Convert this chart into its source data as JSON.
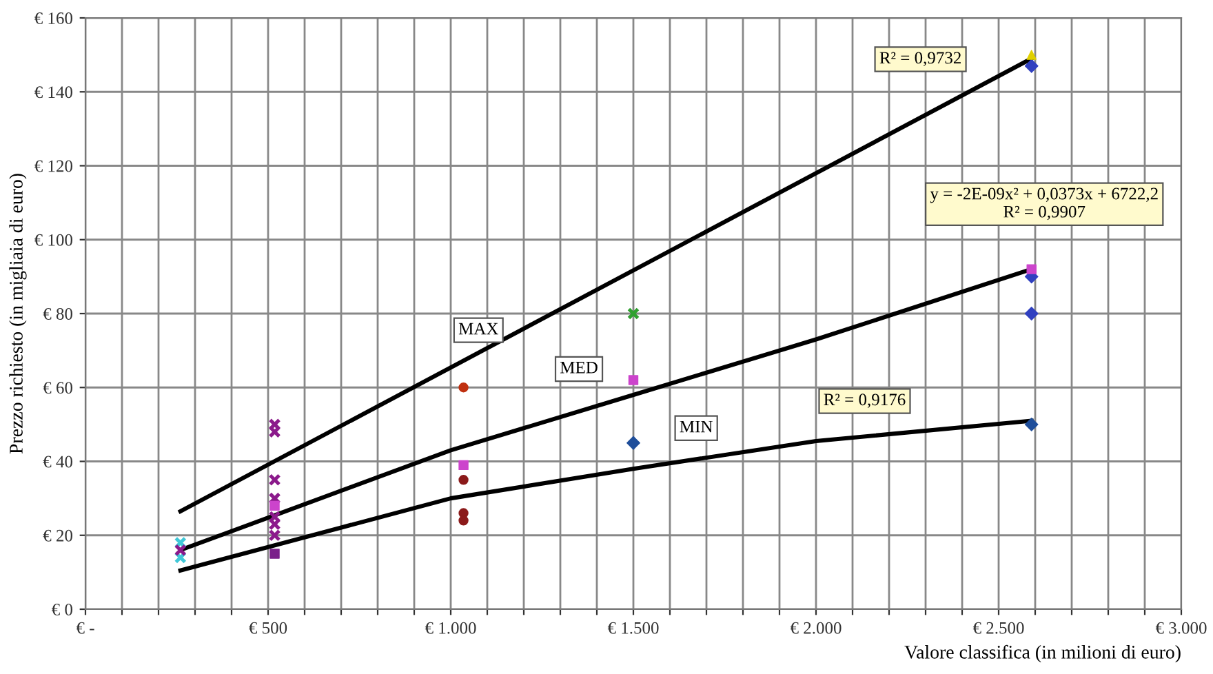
{
  "chart_data": {
    "type": "scatter",
    "xlabel": "Valore classifica (in milioni di euro)",
    "ylabel": "Prezzo richiesto (in migliaia di euro)",
    "xlim": [
      0,
      3000
    ],
    "ylim": [
      0,
      160
    ],
    "xticks": [
      {
        "value": 0,
        "label": "€ -"
      },
      {
        "value": 100,
        "label": null
      },
      {
        "value": 200,
        "label": null
      },
      {
        "value": 300,
        "label": null
      },
      {
        "value": 400,
        "label": null
      },
      {
        "value": 500,
        "label": "€ 500"
      },
      {
        "value": 600,
        "label": null
      },
      {
        "value": 700,
        "label": null
      },
      {
        "value": 800,
        "label": null
      },
      {
        "value": 900,
        "label": null
      },
      {
        "value": 1000,
        "label": "€ 1.000"
      },
      {
        "value": 1100,
        "label": null
      },
      {
        "value": 1200,
        "label": null
      },
      {
        "value": 1300,
        "label": null
      },
      {
        "value": 1400,
        "label": null
      },
      {
        "value": 1500,
        "label": "€ 1.500"
      },
      {
        "value": 1600,
        "label": null
      },
      {
        "value": 1700,
        "label": null
      },
      {
        "value": 1800,
        "label": null
      },
      {
        "value": 1900,
        "label": null
      },
      {
        "value": 2000,
        "label": "€ 2.000"
      },
      {
        "value": 2100,
        "label": null
      },
      {
        "value": 2200,
        "label": null
      },
      {
        "value": 2300,
        "label": null
      },
      {
        "value": 2400,
        "label": null
      },
      {
        "value": 2500,
        "label": "€ 2.500"
      },
      {
        "value": 2600,
        "label": null
      },
      {
        "value": 2700,
        "label": null
      },
      {
        "value": 2800,
        "label": null
      },
      {
        "value": 2900,
        "label": null
      },
      {
        "value": 3000,
        "label": "€ 3.000"
      }
    ],
    "yticks": [
      {
        "value": 0,
        "label": "€ 0"
      },
      {
        "value": 20,
        "label": "€ 20"
      },
      {
        "value": 40,
        "label": "€ 40"
      },
      {
        "value": 60,
        "label": "€ 60"
      },
      {
        "value": 80,
        "label": "€ 80"
      },
      {
        "value": 100,
        "label": "€ 100"
      },
      {
        "value": 120,
        "label": "€ 120"
      },
      {
        "value": 140,
        "label": "€ 140"
      },
      {
        "value": 160,
        "label": "€ 160"
      }
    ],
    "grid": true,
    "legend": false,
    "series": [
      {
        "type": "line",
        "color": "#000000",
        "marker": "none",
        "x": [
          260,
          2590
        ],
        "values": [
          26.5,
          149
        ]
      },
      {
        "type": "line",
        "color": "#000000",
        "marker": "none",
        "x": [
          260,
          1000,
          1500,
          2000,
          2590
        ],
        "values": [
          16,
          43,
          58,
          73,
          92
        ]
      },
      {
        "type": "line",
        "color": "#000000",
        "marker": "none",
        "x": [
          260,
          1000,
          1500,
          2000,
          2590
        ],
        "values": [
          10.5,
          30,
          38,
          45.5,
          51
        ]
      },
      {
        "color": "#1f4e9a",
        "marker": "diamond",
        "x": [
          1500,
          2590
        ],
        "values": [
          45,
          50
        ]
      },
      {
        "color": "#7a1f8a",
        "marker": "square",
        "x": [
          518
        ],
        "values": [
          15
        ]
      },
      {
        "color": "#3040c0",
        "marker": "diamond",
        "x": [
          2590,
          2590,
          2590
        ],
        "values": [
          147,
          90,
          80
        ]
      },
      {
        "color": "#40c8d8",
        "marker": "cross",
        "x": [
          260,
          260
        ],
        "values": [
          18,
          14
        ]
      },
      {
        "color": "#8b1a8b",
        "marker": "cross",
        "x": [
          260,
          518,
          518,
          518,
          518,
          518,
          518,
          518
        ],
        "values": [
          16,
          50,
          48,
          35,
          30,
          25,
          23,
          20
        ]
      },
      {
        "color": "#8b1a1a",
        "marker": "circle",
        "x": [
          1035,
          1035,
          1035
        ],
        "values": [
          35,
          26,
          24
        ]
      },
      {
        "color": "#c03010",
        "marker": "circle",
        "x": [
          1035
        ],
        "values": [
          60
        ]
      },
      {
        "color": "#30a030",
        "marker": "cross",
        "x": [
          1500
        ],
        "values": [
          80
        ]
      },
      {
        "color": "#cc44cc",
        "marker": "square",
        "x": [
          1035,
          1500,
          2590,
          518
        ],
        "values": [
          39,
          62,
          92,
          28
        ]
      },
      {
        "color": "#e0d000",
        "marker": "triangle",
        "x": [
          2590
        ],
        "values": [
          150
        ]
      }
    ],
    "annotations": [
      {
        "text": "MAX",
        "x": 1076,
        "y": 75.5
      },
      {
        "text": "MED",
        "x": 1351,
        "y": 65
      },
      {
        "text": "MIN",
        "x": 1672,
        "y": 49
      },
      "R² = 0,9732",
      "y = -2E-09x² + 0,0373x + 6722,2\nR² = 0,9907",
      "R² = 0,9176"
    ]
  }
}
